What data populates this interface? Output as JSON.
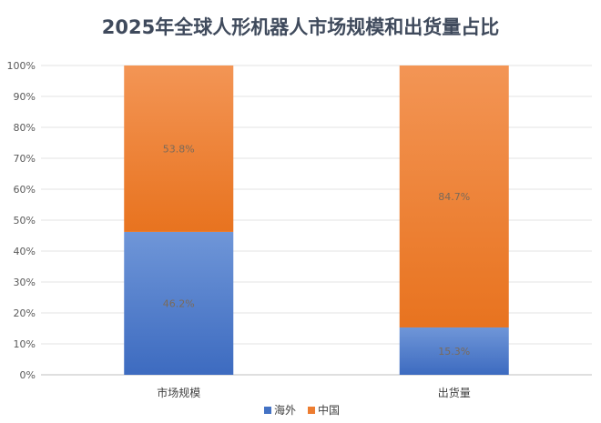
{
  "chart_data": {
    "type": "bar",
    "stacked": true,
    "title": "2025年全球人形机器人市场规模和出货量占比",
    "categories": [
      "市场规模",
      "出货量"
    ],
    "series": [
      {
        "name": "海外",
        "values": [
          46.2,
          15.3
        ],
        "labels": [
          "46.2%",
          "15.3%"
        ],
        "color": "#4472c4"
      },
      {
        "name": "中国",
        "values": [
          53.8,
          84.7
        ],
        "labels": [
          "53.8%",
          "84.7%"
        ],
        "color": "#ed7d31"
      }
    ],
    "yticks": [
      "0%",
      "10%",
      "20%",
      "30%",
      "40%",
      "50%",
      "60%",
      "70%",
      "80%",
      "90%",
      "100%"
    ],
    "ylim": [
      0,
      100
    ],
    "grid": true,
    "legend": "bottom"
  }
}
